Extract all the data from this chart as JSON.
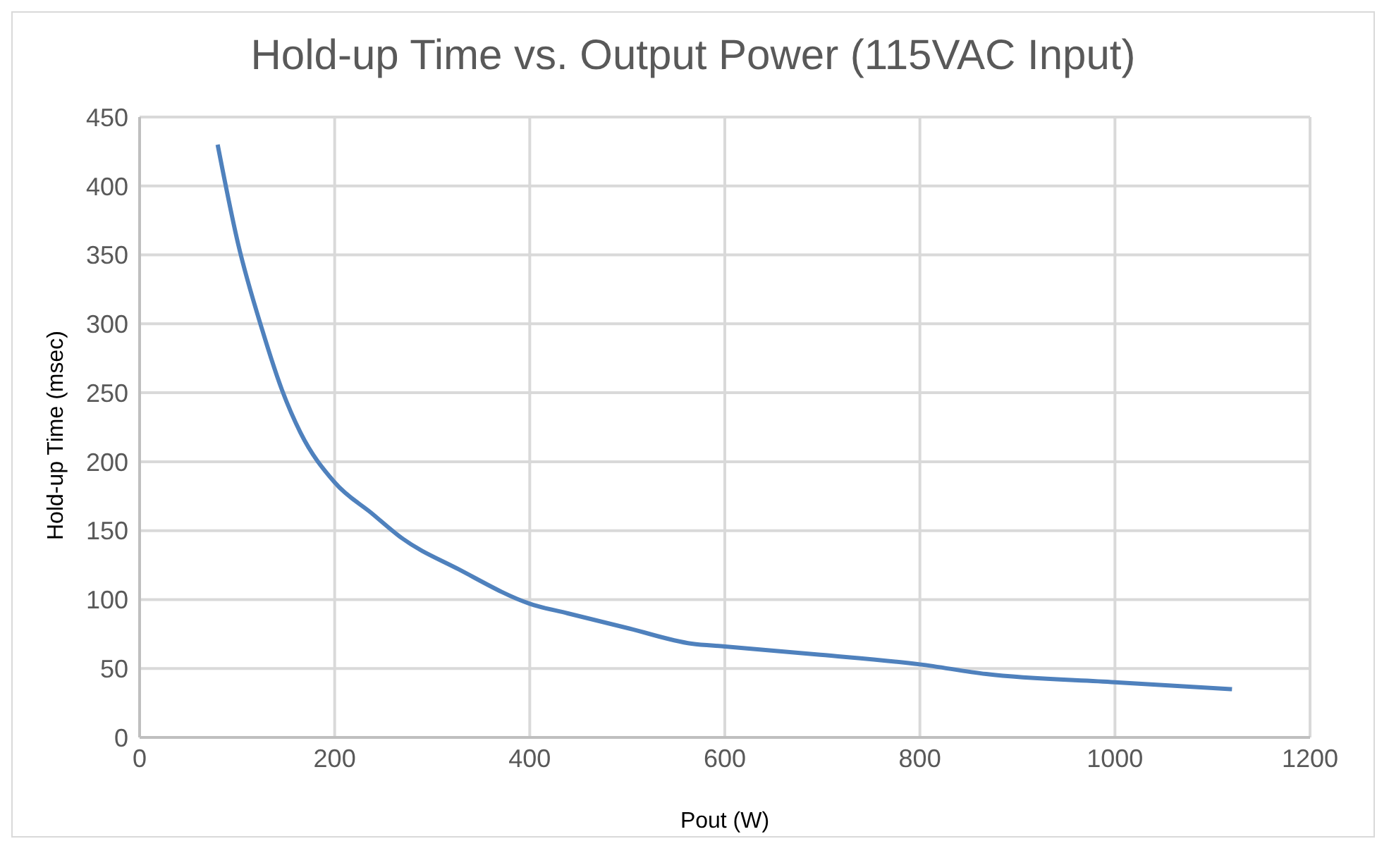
{
  "chart_data": {
    "type": "line",
    "title": "Hold-up Time vs. Output Power (115VAC Input)",
    "xlabel": "Pout (W)",
    "ylabel": "Hold-up Time (msec)",
    "x": [
      80,
      101,
      126,
      146,
      165,
      200,
      239,
      268,
      327,
      400,
      439,
      502,
      566,
      600,
      698,
      800,
      868,
      1000,
      1120
    ],
    "series": [
      {
        "color": "#4f81bd",
        "values": [
          430,
          358,
          295,
          252,
          221,
          185,
          162,
          145,
          122,
          97,
          90,
          79,
          68,
          66,
          60,
          53,
          46,
          40,
          35
        ]
      }
    ],
    "xlim": [
      0,
      1200
    ],
    "xticks": [
      0,
      200,
      400,
      600,
      800,
      1000,
      1200
    ],
    "ylim": [
      0,
      450
    ],
    "yticks": [
      0,
      50,
      100,
      150,
      200,
      250,
      300,
      350,
      400,
      450
    ],
    "grid": true,
    "legend": false,
    "marker": "none",
    "line_style": "solid"
  }
}
